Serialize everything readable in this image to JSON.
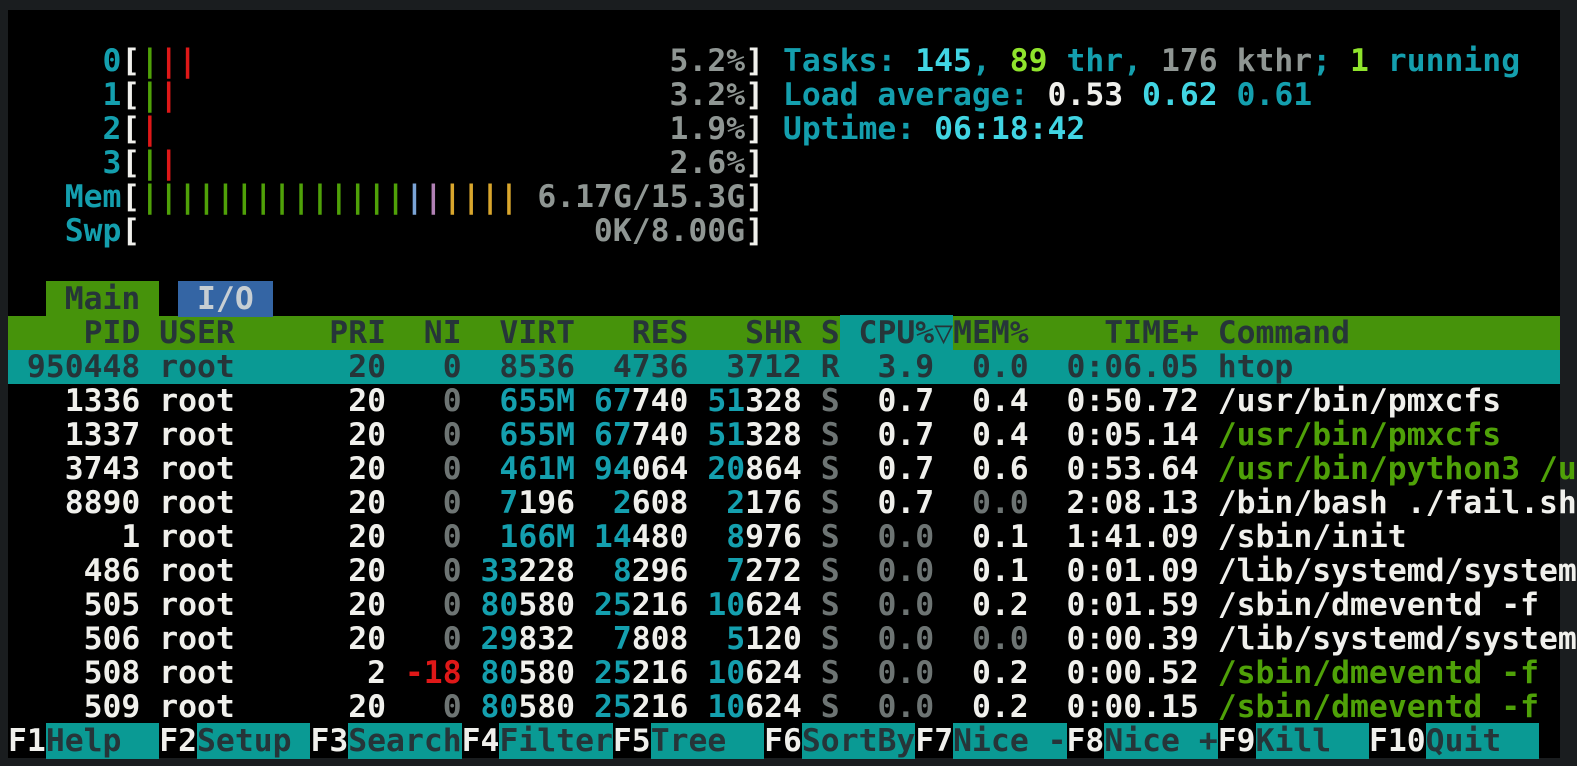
{
  "app": "htop",
  "palette": {
    "bg": "#000000",
    "frame": "#1a1d1f",
    "cyan": "#149fae",
    "bcyan": "#41d5e3",
    "white": "#f0f0ec",
    "gray": "#8f9693",
    "dgray": "#6d7473",
    "green": "#4fa108",
    "bgreen": "#8fe32c",
    "red": "#df1818",
    "barblue": "#7ba4d6",
    "barpurple": "#b181b5",
    "baryellow": "#d9a62d",
    "headerbg": "#46930b",
    "selbg": "#0a9a94",
    "tabblue": "#3465a4",
    "darktext": "#263539",
    "tabbluetext": "#c7ced3"
  },
  "meters": {
    "cpus": [
      {
        "label": "0",
        "bars": [
          "green",
          "red",
          "red"
        ],
        "value": "5.2%"
      },
      {
        "label": "1",
        "bars": [
          "green",
          "red"
        ],
        "value": "3.2%"
      },
      {
        "label": "2",
        "bars": [
          "red"
        ],
        "value": "1.9%"
      },
      {
        "label": "3",
        "bars": [
          "green",
          "red"
        ],
        "value": "2.6%"
      }
    ],
    "mem": {
      "label": "Mem",
      "bars": [
        "green",
        "green",
        "green",
        "green",
        "green",
        "green",
        "green",
        "green",
        "green",
        "green",
        "green",
        "green",
        "green",
        "green",
        "blue",
        "purple",
        "yellow",
        "yellow",
        "yellow",
        "yellow"
      ],
      "value": "6.17G/15.3G"
    },
    "swp": {
      "label": "Swp",
      "bars": [],
      "value": "0K/8.00G"
    }
  },
  "summary": {
    "tasks_line": [
      [
        "Tasks: ",
        "cyan"
      ],
      [
        "145",
        "bcyan"
      ],
      [
        ", ",
        "cyan"
      ],
      [
        "89",
        "bgreen"
      ],
      [
        " thr",
        "cyan"
      ],
      [
        ", ",
        "cyan"
      ],
      [
        "176",
        "gray"
      ],
      [
        " kthr",
        "gray"
      ],
      [
        "; ",
        "cyan"
      ],
      [
        "1",
        "bgreen"
      ],
      [
        " running",
        "cyan"
      ]
    ],
    "load_line": [
      [
        "Load average: ",
        "cyan"
      ],
      [
        "0.53 ",
        "white"
      ],
      [
        "0.62 ",
        "bcyan"
      ],
      [
        "0.61",
        "cyan"
      ]
    ],
    "uptime_line": [
      [
        "Uptime: ",
        "cyan"
      ],
      [
        "06:18:42",
        "bcyan"
      ]
    ]
  },
  "tabs": [
    {
      "label": "Main",
      "active": true
    },
    {
      "label": "I/O",
      "active": false
    }
  ],
  "table": {
    "columns": [
      "PID",
      "USER",
      "PRI",
      "NI",
      "VIRT",
      "RES",
      "SHR",
      "S",
      "CPU%",
      "MEM%",
      "TIME+",
      "Command"
    ],
    "sort_column": "CPU%",
    "sort_indicator": "▽",
    "processes": [
      {
        "pid": "950448",
        "user": "root",
        "pri": "20",
        "ni": "0",
        "virt": "8536",
        "res": "4736",
        "shr": "3712",
        "s": "R",
        "cpu": "3.9",
        "mem": "0.0",
        "time": "0:06.05",
        "cmd": "htop",
        "selected": true,
        "cmd_color": "white"
      },
      {
        "pid": "1336",
        "user": "root",
        "pri": "20",
        "ni": "0",
        "virt": "655M",
        "res": "67740",
        "shr": "51328",
        "s": "S",
        "cpu": "0.7",
        "mem": "0.4",
        "time": "0:50.72",
        "cmd": "/usr/bin/pmxcfs",
        "selected": false,
        "cmd_color": "white"
      },
      {
        "pid": "1337",
        "user": "root",
        "pri": "20",
        "ni": "0",
        "virt": "655M",
        "res": "67740",
        "shr": "51328",
        "s": "S",
        "cpu": "0.7",
        "mem": "0.4",
        "time": "0:05.14",
        "cmd": "/usr/bin/pmxcfs",
        "selected": false,
        "cmd_color": "green"
      },
      {
        "pid": "3743",
        "user": "root",
        "pri": "20",
        "ni": "0",
        "virt": "461M",
        "res": "94064",
        "shr": "20864",
        "s": "S",
        "cpu": "0.7",
        "mem": "0.6",
        "time": "0:53.64",
        "cmd": "/usr/bin/python3 /u",
        "selected": false,
        "cmd_color": "green"
      },
      {
        "pid": "8890",
        "user": "root",
        "pri": "20",
        "ni": "0",
        "virt": "7196",
        "res": "2608",
        "shr": "2176",
        "s": "S",
        "cpu": "0.7",
        "mem": "0.0",
        "time": "2:08.13",
        "cmd": "/bin/bash ./fail.sh",
        "selected": false,
        "cmd_color": "white"
      },
      {
        "pid": "1",
        "user": "root",
        "pri": "20",
        "ni": "0",
        "virt": "166M",
        "res": "14480",
        "shr": "8976",
        "s": "S",
        "cpu": "0.0",
        "mem": "0.1",
        "time": "1:41.09",
        "cmd": "/sbin/init",
        "selected": false,
        "cmd_color": "white"
      },
      {
        "pid": "486",
        "user": "root",
        "pri": "20",
        "ni": "0",
        "virt": "33228",
        "res": "8296",
        "shr": "7272",
        "s": "S",
        "cpu": "0.0",
        "mem": "0.1",
        "time": "0:01.09",
        "cmd": "/lib/systemd/system",
        "selected": false,
        "cmd_color": "white"
      },
      {
        "pid": "505",
        "user": "root",
        "pri": "20",
        "ni": "0",
        "virt": "80580",
        "res": "25216",
        "shr": "10624",
        "s": "S",
        "cpu": "0.0",
        "mem": "0.2",
        "time": "0:01.59",
        "cmd": "/sbin/dmeventd -f",
        "selected": false,
        "cmd_color": "white"
      },
      {
        "pid": "506",
        "user": "root",
        "pri": "20",
        "ni": "0",
        "virt": "29832",
        "res": "7808",
        "shr": "5120",
        "s": "S",
        "cpu": "0.0",
        "mem": "0.0",
        "time": "0:00.39",
        "cmd": "/lib/systemd/system",
        "selected": false,
        "cmd_color": "white"
      },
      {
        "pid": "508",
        "user": "root",
        "pri": "2",
        "ni": "-18",
        "virt": "80580",
        "res": "25216",
        "shr": "10624",
        "s": "S",
        "cpu": "0.0",
        "mem": "0.2",
        "time": "0:00.52",
        "cmd": "/sbin/dmeventd -f",
        "selected": false,
        "cmd_color": "green"
      },
      {
        "pid": "509",
        "user": "root",
        "pri": "20",
        "ni": "0",
        "virt": "80580",
        "res": "25216",
        "shr": "10624",
        "s": "S",
        "cpu": "0.0",
        "mem": "0.2",
        "time": "0:00.15",
        "cmd": "/sbin/dmeventd -f",
        "selected": false,
        "cmd_color": "green"
      }
    ]
  },
  "fnbar": [
    {
      "key": "F1",
      "label": "Help"
    },
    {
      "key": "F2",
      "label": "Setup"
    },
    {
      "key": "F3",
      "label": "Search"
    },
    {
      "key": "F4",
      "label": "Filter"
    },
    {
      "key": "F5",
      "label": "Tree"
    },
    {
      "key": "F6",
      "label": "SortBy"
    },
    {
      "key": "F7",
      "label": "Nice -"
    },
    {
      "key": "F8",
      "label": "Nice +"
    },
    {
      "key": "F9",
      "label": "Kill"
    },
    {
      "key": "F10",
      "label": "Quit"
    }
  ]
}
